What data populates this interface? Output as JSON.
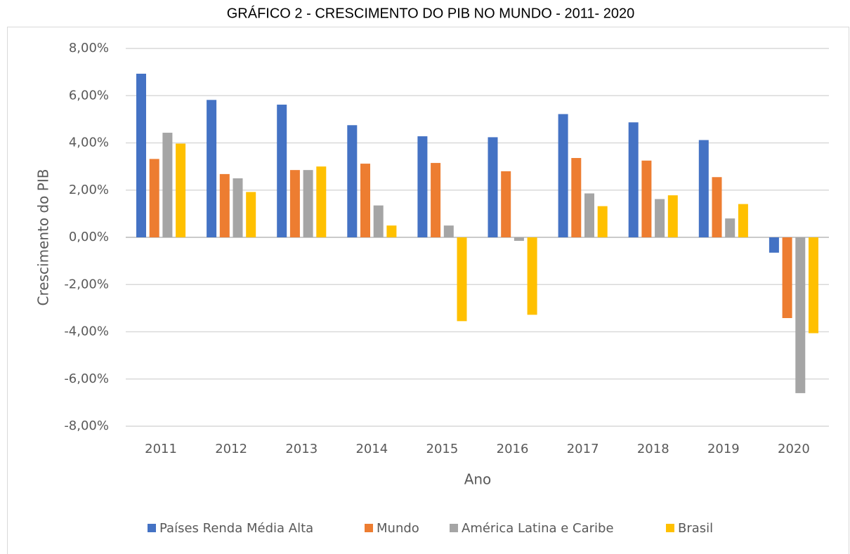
{
  "chart_data": {
    "type": "bar",
    "title": "GRÁFICO 2 - CRESCIMENTO DO PIB NO MUNDO - 2011- 2020",
    "x_label": "Ano",
    "y_label": "Crescimento do PIB",
    "categories": [
      "2011",
      "2012",
      "2013",
      "2014",
      "2015",
      "2016",
      "2017",
      "2018",
      "2019",
      "2020"
    ],
    "series": [
      {
        "name": "Países Renda Média Alta",
        "color": "#4472c4",
        "values": [
          6.93,
          5.82,
          5.62,
          4.75,
          4.28,
          4.24,
          5.22,
          4.87,
          4.12,
          -0.65
        ]
      },
      {
        "name": "Mundo",
        "color": "#ed7d31",
        "values": [
          3.32,
          2.68,
          2.85,
          3.12,
          3.15,
          2.8,
          3.36,
          3.25,
          2.55,
          -3.42
        ]
      },
      {
        "name": "América Latina e Caribe",
        "color": "#a5a5a5",
        "values": [
          4.43,
          2.5,
          2.85,
          1.35,
          0.5,
          -0.15,
          1.86,
          1.62,
          0.8,
          -6.6
        ]
      },
      {
        "name": "Brasil",
        "color": "#ffc000",
        "values": [
          3.97,
          1.92,
          3.0,
          0.5,
          -3.55,
          -3.28,
          1.32,
          1.78,
          1.41,
          -4.06
        ]
      }
    ],
    "ylim": [
      -8,
      8
    ],
    "yticks": [
      {
        "value": 8,
        "label": "8,00%"
      },
      {
        "value": 6,
        "label": "6,00%"
      },
      {
        "value": 4,
        "label": "4,00%"
      },
      {
        "value": 2,
        "label": "2,00%"
      },
      {
        "value": 0,
        "label": "0,00%"
      },
      {
        "value": -2,
        "label": "-2,00%"
      },
      {
        "value": -4,
        "label": "-4,00%"
      },
      {
        "value": -6,
        "label": "-6,00%"
      },
      {
        "value": -8,
        "label": "-8,00%"
      }
    ],
    "grid": true,
    "legend": "bottom"
  }
}
